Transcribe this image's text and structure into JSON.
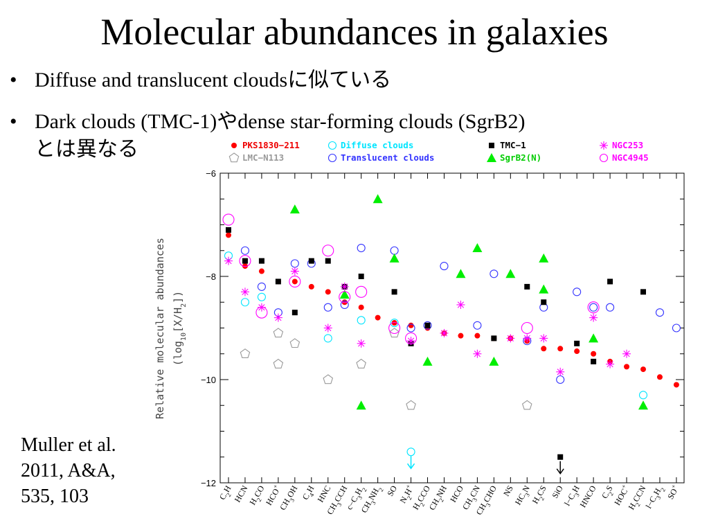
{
  "slide": {
    "title": "Molecular abundances in galaxies",
    "bullets": [
      {
        "marker": "•",
        "text_en": "Diffuse and translucent clouds",
        "text_jp": "に似ている"
      },
      {
        "marker": "•",
        "text_en_1": "Dark clouds (TMC-1)",
        "text_jp_1": "や",
        "text_en_2": "dense star-forming clouds (SgrB2)",
        "text_jp_2": "とは異なる"
      }
    ],
    "citation": [
      "Muller et al.",
      "2011, A&A,",
      "535, 103"
    ]
  },
  "chart_data": {
    "type": "scatter",
    "ylabel_1": "Relative molecular abundances",
    "ylabel_2": "(log10[X/H2])",
    "ylim": [
      -12,
      -6
    ],
    "yticks": [
      -6,
      -8,
      -10,
      -12
    ],
    "ytick_labels": [
      "−6",
      "−8",
      "−10",
      "−12"
    ],
    "categories": [
      {
        "base": "C",
        "sub": "2",
        "rest": "H",
        "sup": ""
      },
      {
        "base": "HCN",
        "sub": "",
        "rest": "",
        "sup": ""
      },
      {
        "base": "H",
        "sub": "2",
        "rest": "CO",
        "sup": ""
      },
      {
        "base": "HCO",
        "sub": "",
        "rest": "",
        "sup": "+"
      },
      {
        "base": "CH",
        "sub": "3",
        "rest": "OH",
        "sup": ""
      },
      {
        "base": "C",
        "sub": "4",
        "rest": "H",
        "sup": ""
      },
      {
        "base": "HNC",
        "sub": "",
        "rest": "",
        "sup": ""
      },
      {
        "base": "CH",
        "sub": "3",
        "rest": "CCH",
        "sup": ""
      },
      {
        "base": "c−C",
        "sub": "3",
        "rest": "H",
        "sub2": "2",
        "sup": ""
      },
      {
        "base": "CH",
        "sub": "3",
        "rest": "NH",
        "sub2": "2",
        "sup": ""
      },
      {
        "base": "SO",
        "sub": "",
        "rest": "",
        "sup": ""
      },
      {
        "base": "N",
        "sub": "2",
        "rest": "H",
        "sup": "+"
      },
      {
        "base": "H",
        "sub": "2",
        "rest": "CCO",
        "sup": ""
      },
      {
        "base": "CH",
        "sub": "2",
        "rest": "NH",
        "sup": ""
      },
      {
        "base": "HCO",
        "sub": "",
        "rest": "",
        "sup": ""
      },
      {
        "base": "CH",
        "sub": "3",
        "rest": "CN",
        "sup": ""
      },
      {
        "base": "CH",
        "sub": "3",
        "rest": "CHO",
        "sup": ""
      },
      {
        "base": "NS",
        "sub": "",
        "rest": "",
        "sup": ""
      },
      {
        "base": "HC",
        "sub": "3",
        "rest": "N",
        "sup": ""
      },
      {
        "base": "H",
        "sub": "2",
        "rest": "CS",
        "sup": ""
      },
      {
        "base": "SiO",
        "sub": "",
        "rest": "",
        "sup": ""
      },
      {
        "base": "l−C",
        "sub": "3",
        "rest": "H",
        "sup": ""
      },
      {
        "base": "HNCO",
        "sub": "",
        "rest": "",
        "sup": ""
      },
      {
        "base": "C",
        "sub": "2",
        "rest": "S",
        "sup": ""
      },
      {
        "base": "HOC",
        "sub": "",
        "rest": "",
        "sup": "+"
      },
      {
        "base": "H",
        "sub": "2",
        "rest": "CCN",
        "sup": ""
      },
      {
        "base": "l−C",
        "sub": "3",
        "rest": "H",
        "sub2": "2",
        "sup": ""
      },
      {
        "base": "SO",
        "sub": "",
        "rest": "",
        "sup": "+"
      }
    ],
    "series": [
      {
        "name": "PKS1830-211",
        "label": "PKS1830−211",
        "marker": "filled-circle",
        "color": "#ff0000",
        "values": [
          -7.2,
          -7.8,
          -7.9,
          -8.1,
          -8.1,
          -8.2,
          -8.3,
          -8.5,
          -8.6,
          -8.8,
          -8.9,
          -8.95,
          -9.0,
          -9.1,
          -9.15,
          -9.15,
          -9.2,
          -9.2,
          -9.25,
          -9.4,
          -9.4,
          -9.45,
          -9.5,
          -9.65,
          -9.75,
          -9.8,
          -9.95,
          -10.1
        ]
      },
      {
        "name": "LMC-N113",
        "label": "LMC−N113",
        "marker": "open-pentagon",
        "color": "#999999",
        "points": [
          [
            1,
            -9.5
          ],
          [
            3,
            -9.1
          ],
          [
            3,
            -9.7
          ],
          [
            4,
            -9.3
          ],
          [
            6,
            -10.0
          ],
          [
            8,
            -9.7
          ],
          [
            10,
            -9.1
          ],
          [
            11,
            -10.5
          ],
          [
            18,
            -10.5
          ]
        ]
      },
      {
        "name": "Diffuse clouds",
        "label": "Diffuse clouds",
        "marker": "open-circle",
        "color": "#00e5ff",
        "points": [
          [
            0,
            -7.6
          ],
          [
            1,
            -8.5
          ],
          [
            2,
            -8.4
          ],
          [
            6,
            -9.2
          ],
          [
            8,
            -8.85
          ],
          [
            10,
            -8.9
          ],
          [
            11,
            -11.4
          ],
          [
            25,
            -10.3
          ]
        ],
        "upper_limits": [
          11
        ]
      },
      {
        "name": "Translucent clouds",
        "label": "Translucent clouds",
        "marker": "open-circle",
        "color": "#3333ff",
        "points": [
          [
            1,
            -7.5
          ],
          [
            2,
            -8.2
          ],
          [
            3,
            -8.7
          ],
          [
            4,
            -7.75
          ],
          [
            5,
            -7.75
          ],
          [
            6,
            -8.6
          ],
          [
            7,
            -8.55
          ],
          [
            8,
            -7.45
          ],
          [
            10,
            -7.5
          ],
          [
            11,
            -9.0
          ],
          [
            12,
            -8.95
          ],
          [
            13,
            -7.8
          ],
          [
            15,
            -8.95
          ],
          [
            16,
            -7.95
          ],
          [
            18,
            -9.25
          ],
          [
            19,
            -8.6
          ],
          [
            20,
            -10.0
          ],
          [
            21,
            -8.3
          ],
          [
            22,
            -8.6
          ],
          [
            23,
            -8.6
          ],
          [
            26,
            -8.7
          ],
          [
            27,
            -9.0
          ]
        ]
      },
      {
        "name": "TMC-1",
        "label": "TMC−1",
        "marker": "filled-square",
        "color": "#000000",
        "points": [
          [
            0,
            -7.1
          ],
          [
            1,
            -7.7
          ],
          [
            2,
            -7.7
          ],
          [
            3,
            -8.1
          ],
          [
            4,
            -8.7
          ],
          [
            5,
            -7.7
          ],
          [
            6,
            -7.7
          ],
          [
            7,
            -8.2
          ],
          [
            8,
            -8.0
          ],
          [
            10,
            -8.3
          ],
          [
            11,
            -9.3
          ],
          [
            12,
            -8.95
          ],
          [
            16,
            -9.2
          ],
          [
            18,
            -8.2
          ],
          [
            19,
            -8.5
          ],
          [
            20,
            -11.5
          ],
          [
            21,
            -9.3
          ],
          [
            22,
            -9.65
          ],
          [
            23,
            -8.1
          ],
          [
            25,
            -8.3
          ]
        ],
        "upper_limits": [
          20
        ]
      },
      {
        "name": "SgrB2(N)",
        "label": "SgrB2(N)",
        "marker": "filled-triangle",
        "color": "#00ee00",
        "points": [
          [
            4,
            -6.7
          ],
          [
            7,
            -8.35
          ],
          [
            8,
            -10.5
          ],
          [
            9,
            -6.5
          ],
          [
            10,
            -7.65
          ],
          [
            12,
            -9.65
          ],
          [
            14,
            -7.95
          ],
          [
            15,
            -7.45
          ],
          [
            16,
            -9.65
          ],
          [
            17,
            -7.95
          ],
          [
            19,
            -7.65
          ],
          [
            19,
            -8.25
          ],
          [
            22,
            -9.2
          ],
          [
            25,
            -10.5
          ]
        ]
      },
      {
        "name": "NGC253",
        "label": "NGC253",
        "marker": "asterisk",
        "color": "#ff00ff",
        "points": [
          [
            0,
            -7.7
          ],
          [
            1,
            -8.3
          ],
          [
            2,
            -8.6
          ],
          [
            3,
            -8.8
          ],
          [
            4,
            -7.9
          ],
          [
            6,
            -9.0
          ],
          [
            7,
            -8.2
          ],
          [
            8,
            -9.3
          ],
          [
            11,
            -9.25
          ],
          [
            13,
            -9.1
          ],
          [
            14,
            -8.55
          ],
          [
            15,
            -9.5
          ],
          [
            17,
            -9.2
          ],
          [
            18,
            -9.2
          ],
          [
            19,
            -9.2
          ],
          [
            20,
            -9.85
          ],
          [
            22,
            -8.8
          ],
          [
            23,
            -9.7
          ],
          [
            24,
            -9.5
          ]
        ]
      },
      {
        "name": "NGC4945",
        "label": "NGC4945",
        "marker": "open-circle-large",
        "color": "#ff00ff",
        "points": [
          [
            0,
            -6.9
          ],
          [
            1,
            -7.7
          ],
          [
            2,
            -8.7
          ],
          [
            4,
            -8.1
          ],
          [
            6,
            -7.5
          ],
          [
            7,
            -8.4
          ],
          [
            8,
            -8.3
          ],
          [
            10,
            -9.0
          ],
          [
            11,
            -9.2
          ],
          [
            18,
            -9.0
          ],
          [
            22,
            -8.6
          ]
        ]
      }
    ]
  }
}
